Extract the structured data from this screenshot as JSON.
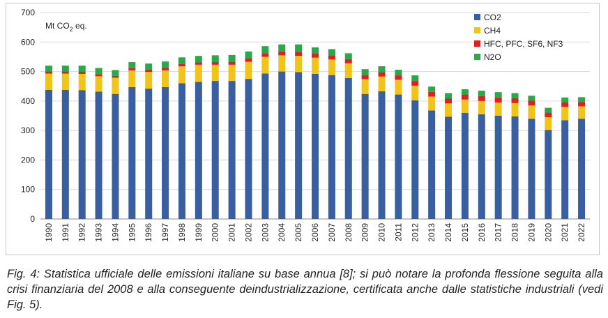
{
  "chart_data": {
    "type": "bar",
    "stacked": true,
    "unit_label": "Mt CO",
    "unit_sub": "2",
    "unit_suffix": " eq.",
    "ylim": [
      0,
      700
    ],
    "yticks": [
      0,
      100,
      200,
      300,
      400,
      500,
      600,
      700
    ],
    "legend_position": "top-right",
    "categories": [
      "1990",
      "1991",
      "1992",
      "1993",
      "1994",
      "1995",
      "1996",
      "1997",
      "1998",
      "1999",
      "2000",
      "2001",
      "2002",
      "2003",
      "2004",
      "2005",
      "2006",
      "2007",
      "2008",
      "2009",
      "2010",
      "2011",
      "2012",
      "2013",
      "2014",
      "2015",
      "2016",
      "2017",
      "2018",
      "2019",
      "2020",
      "2021",
      "2022"
    ],
    "series": [
      {
        "name": "CO2",
        "color": "#3a5fa0",
        "values": [
          438,
          438,
          437,
          432,
          424,
          447,
          442,
          447,
          460,
          465,
          468,
          468,
          475,
          493,
          500,
          498,
          492,
          488,
          478,
          424,
          433,
          422,
          402,
          368,
          347,
          360,
          355,
          350,
          348,
          340,
          302,
          335,
          340
        ]
      },
      {
        "name": "CH4",
        "color": "#f0c419",
        "values": [
          55,
          55,
          55,
          52,
          55,
          57,
          57,
          57,
          58,
          58,
          55,
          55,
          58,
          57,
          55,
          55,
          55,
          53,
          50,
          50,
          50,
          50,
          50,
          47,
          45,
          45,
          45,
          45,
          45,
          45,
          43,
          45,
          42
        ]
      },
      {
        "name": "HFC, PFC, SF6, NF3",
        "color": "#e02020",
        "values": [
          7,
          7,
          7,
          7,
          6,
          7,
          7,
          8,
          8,
          8,
          9,
          10,
          11,
          12,
          13,
          14,
          15,
          14,
          14,
          14,
          15,
          15,
          16,
          16,
          17,
          17,
          17,
          17,
          17,
          16,
          16,
          16,
          15
        ]
      },
      {
        "name": "N2O",
        "color": "#2aa84a",
        "values": [
          20,
          20,
          21,
          21,
          20,
          21,
          21,
          22,
          22,
          22,
          23,
          23,
          24,
          24,
          24,
          25,
          20,
          21,
          20,
          20,
          20,
          19,
          19,
          18,
          18,
          18,
          18,
          18,
          17,
          17,
          16,
          16,
          16
        ]
      }
    ]
  },
  "caption": "Fig. 4: Statistica ufficiale delle emissioni italiane su base annua [8]; si può notare la profonda flessione seguita alla crisi finanziaria del 2008 e alla conseguente deindustrializzazione, certificata anche dalle statistiche industriali (vedi Fig. 5)."
}
